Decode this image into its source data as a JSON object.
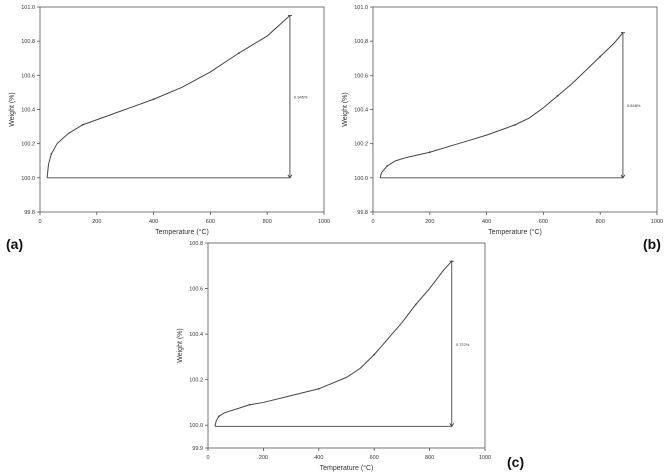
{
  "panels": [
    {
      "label": "(a)",
      "chart_data": {
        "type": "line",
        "xlabel": "Temperature (°C)",
        "ylabel": "Weight (%)",
        "xlim": [
          0,
          1000
        ],
        "ylim": [
          99.8,
          101.0
        ],
        "xticks": [
          "0",
          "200",
          "400",
          "600",
          "800",
          "1000"
        ],
        "yticks": [
          "99.8",
          "100.0",
          "100.2",
          "100.4",
          "100.6",
          "100.8",
          "101.0"
        ],
        "series": [
          {
            "x": [
              25,
              30,
              40,
              60,
              100,
              150,
              200,
              300,
              400,
              500,
              600,
              700,
              800,
              880
            ],
            "y": [
              100.0,
              100.08,
              100.14,
              100.2,
              100.26,
              100.31,
              100.34,
              100.4,
              100.46,
              100.53,
              100.62,
              100.73,
              100.83,
              100.95
            ]
          }
        ],
        "annotation": {
          "x": 880,
          "y_from": 100.0,
          "y_to": 100.95,
          "text": "0.945%"
        }
      }
    },
    {
      "label": "(b)",
      "chart_data": {
        "type": "line",
        "xlabel": "Temperature (°C)",
        "ylabel": "Weight (%)",
        "xlim": [
          0,
          1000
        ],
        "ylim": [
          99.8,
          101.0
        ],
        "xticks": [
          "0",
          "200",
          "400",
          "600",
          "800",
          "1000"
        ],
        "yticks": [
          "99.8",
          "100.0",
          "100.2",
          "100.4",
          "100.6",
          "100.8",
          "101.0"
        ],
        "series": [
          {
            "x": [
              25,
              30,
              50,
              80,
              120,
              200,
              300,
              400,
              500,
              550,
              600,
              650,
              700,
              750,
              800,
              850,
              880
            ],
            "y": [
              100.0,
              100.03,
              100.07,
              100.1,
              100.12,
              100.15,
              100.2,
              100.25,
              100.31,
              100.35,
              100.41,
              100.48,
              100.55,
              100.63,
              100.71,
              100.79,
              100.85
            ]
          }
        ],
        "annotation": {
          "x": 880,
          "y_from": 100.0,
          "y_to": 100.85,
          "text": "0.848%"
        }
      }
    },
    {
      "label": "(c)",
      "chart_data": {
        "type": "line",
        "xlabel": "Temperature (°C)",
        "ylabel": "Weight (%)",
        "xlim": [
          0,
          1000
        ],
        "ylim": [
          99.9,
          100.8
        ],
        "xticks": [
          "0",
          "200",
          "400",
          "600",
          "800",
          "1000"
        ],
        "yticks": [
          "99.9",
          "100.0",
          "100.2",
          "100.4",
          "100.6",
          "100.8"
        ],
        "series": [
          {
            "x": [
              25,
              30,
              40,
              60,
              100,
              150,
              200,
              300,
              400,
              500,
              550,
              600,
              650,
              700,
              750,
              800,
              850,
              880
            ],
            "y": [
              99.995,
              100.02,
              100.04,
              100.055,
              100.07,
              100.09,
              100.1,
              100.13,
              100.16,
              100.21,
              100.25,
              100.31,
              100.38,
              100.45,
              100.53,
              100.6,
              100.68,
              100.72
            ]
          }
        ],
        "annotation": {
          "x": 880,
          "y_from": 99.995,
          "y_to": 100.72,
          "text": "0.722%"
        }
      }
    }
  ]
}
